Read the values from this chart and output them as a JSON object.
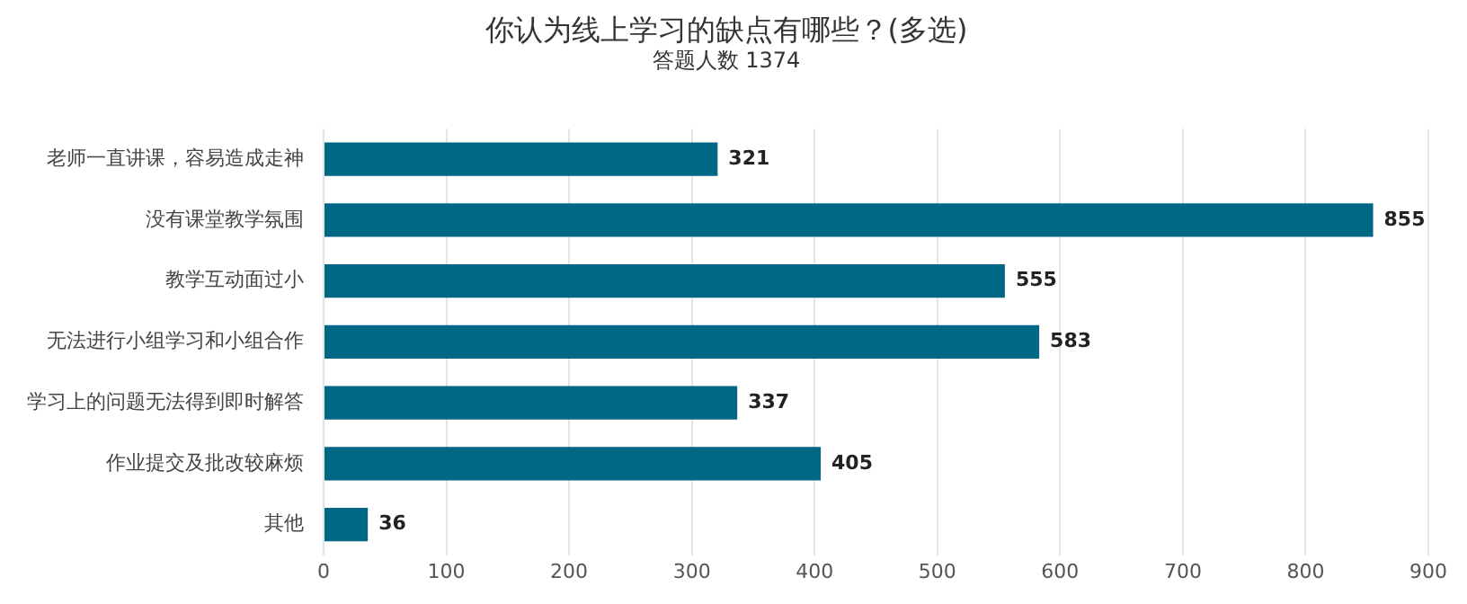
{
  "chart_data": {
    "type": "bar",
    "orientation": "horizontal",
    "title": "你认为线上学习的缺点有哪些？(多选)",
    "subtitle": "答题人数 1374",
    "categories": [
      "老师一直讲课，容易造成走神",
      "没有课堂教学氛围",
      "教学互动面过小",
      "无法进行小组学习和小组合作",
      "学习上的问题无法得到即时解答",
      "作业提交及批改较麻烦",
      "其他"
    ],
    "values": [
      321,
      855,
      555,
      583,
      337,
      405,
      36
    ],
    "color": "#006884",
    "xlim": [
      0,
      900
    ],
    "xticks": [
      0,
      100,
      200,
      300,
      400,
      500,
      600,
      700,
      800,
      900
    ],
    "grid": "x",
    "legend": false,
    "data_labels": true
  }
}
